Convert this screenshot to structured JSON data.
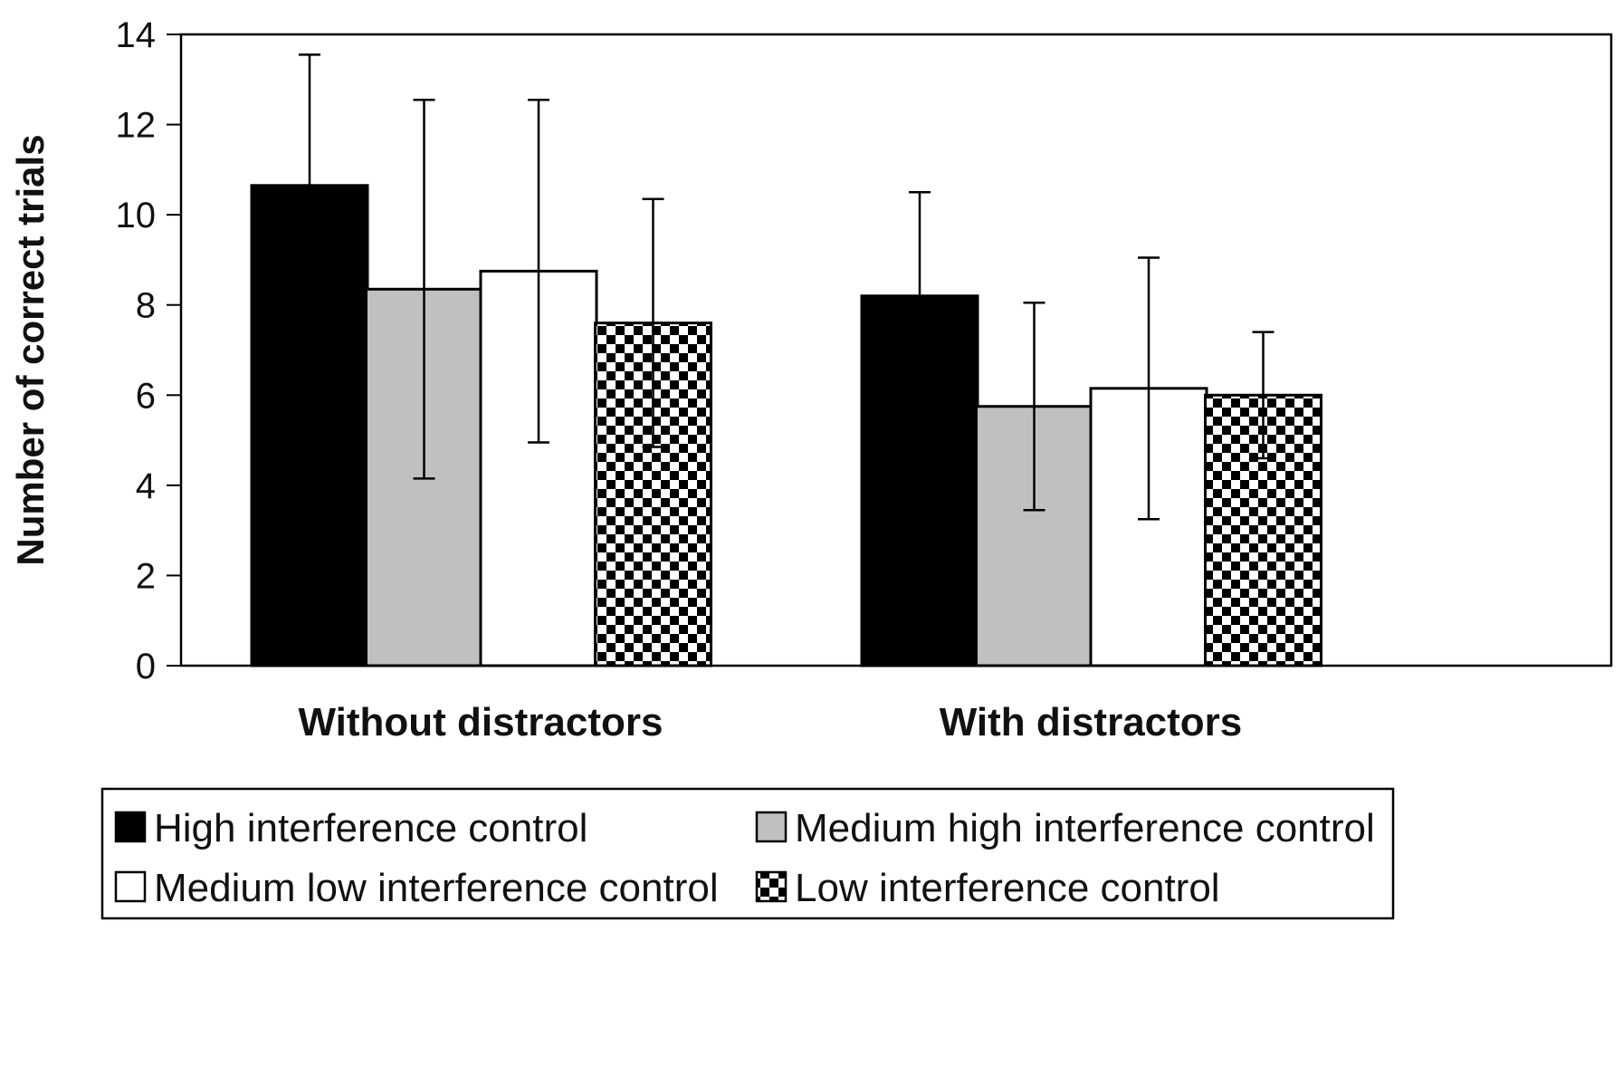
{
  "chart_data": {
    "type": "bar",
    "title": "",
    "xlabel": "",
    "ylabel": "Number of correct trials",
    "ylim": [
      0,
      14
    ],
    "yticks": [
      0,
      2,
      4,
      6,
      8,
      10,
      12,
      14
    ],
    "grid": false,
    "legend_position": "bottom",
    "categories": [
      "Without distractors",
      "With distractors"
    ],
    "series": [
      {
        "name": "High interference control",
        "values": [
          10.65,
          8.2
        ],
        "errors": [
          2.9,
          2.3
        ],
        "fill": "#000000",
        "pattern": "solid"
      },
      {
        "name": "Medium high interference control",
        "values": [
          8.35,
          5.75
        ],
        "errors": [
          4.2,
          2.3
        ],
        "fill": "#c0c0c0",
        "pattern": "solid"
      },
      {
        "name": "Medium low interference control",
        "values": [
          8.75,
          6.15
        ],
        "errors": [
          3.8,
          2.9
        ],
        "fill": "#ffffff",
        "pattern": "solid"
      },
      {
        "name": "Low interference control",
        "values": [
          7.6,
          6.0
        ],
        "errors": [
          2.75,
          1.4
        ],
        "fill": "#000000",
        "pattern": "checker"
      }
    ]
  }
}
